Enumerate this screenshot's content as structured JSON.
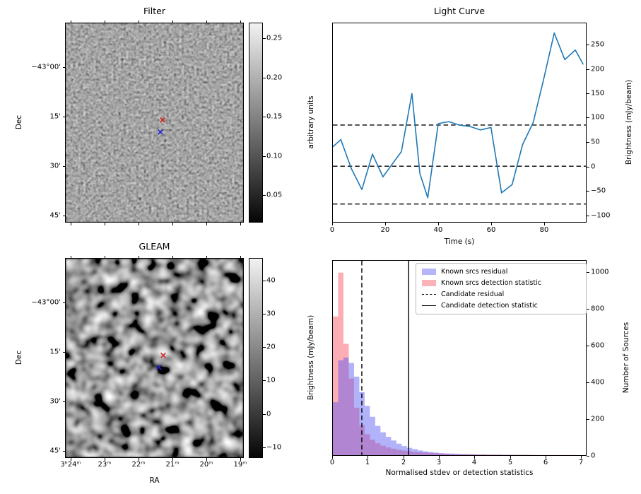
{
  "figure": {
    "background": "#ffffff",
    "line_color": "#1f77b4"
  },
  "panels": {
    "filter": {
      "title": "Filter",
      "ylabel": "Dec",
      "yticks": [
        "−43°00'",
        "15'",
        "30'",
        "45'"
      ],
      "colorbar": {
        "label": "arbitrary units",
        "ticks": [
          "0.25",
          "0.20",
          "0.15",
          "0.10",
          "0.05"
        ]
      },
      "markers": [
        {
          "name": "candidate-position",
          "glyph": "×",
          "color": "#d62222"
        },
        {
          "name": "known-source-position",
          "glyph": "×",
          "color": "#2222dd"
        }
      ]
    },
    "light_curve": {
      "title": "Light Curve",
      "xlabel": "Time (s)",
      "ylabel": "Brightness (mJy/beam)",
      "xticks": [
        "0",
        "20",
        "40",
        "60",
        "80"
      ],
      "yticks": [
        "250",
        "200",
        "150",
        "100",
        "50",
        "0",
        "−50",
        "−100"
      ]
    },
    "gleam": {
      "title": "GLEAM",
      "xlabel": "RA",
      "ylabel": "Dec",
      "xticks": [
        "3ʰ24ᵐ",
        "23ᵐ",
        "22ᵐ",
        "21ᵐ",
        "20ᵐ",
        "19ᵐ"
      ],
      "yticks": [
        "−43°00'",
        "15'",
        "30'",
        "45'"
      ],
      "colorbar": {
        "label": "Brightness (mJy/beam)",
        "ticks": [
          "40",
          "30",
          "20",
          "10",
          "0",
          "−10"
        ]
      },
      "markers": [
        {
          "name": "candidate-position",
          "glyph": "×",
          "color": "#d62222"
        },
        {
          "name": "known-source-position",
          "glyph": "×",
          "color": "#2222dd"
        }
      ]
    },
    "histogram": {
      "xlabel": "Normalised stdev or detection statistics",
      "ylabel": "Number of Sources",
      "xticks": [
        "0",
        "1",
        "2",
        "3",
        "4",
        "5",
        "6",
        "7"
      ],
      "yticks": [
        "0",
        "200",
        "400",
        "600",
        "800",
        "1000"
      ],
      "legend": [
        {
          "label": "Known srcs residual",
          "swatch": "patch",
          "color": "#b5b5f8"
        },
        {
          "label": "Known srcs detection statistic",
          "swatch": "patch",
          "color": "#fbb3b9"
        },
        {
          "label": "Candidate residual",
          "swatch": "dashed-line",
          "color": "#000000"
        },
        {
          "label": "Candidate detection statistic",
          "swatch": "solid-line",
          "color": "#000000"
        }
      ]
    }
  },
  "chart_data": [
    {
      "type": "line",
      "title": "Light Curve",
      "xlabel": "Time (s)",
      "ylabel": "Brightness (mJy/beam)",
      "x": [
        0,
        3,
        7,
        11,
        15,
        19,
        23,
        26,
        30,
        33,
        36,
        40,
        44,
        48,
        52,
        56,
        60,
        64,
        68,
        72,
        76,
        80,
        84,
        88,
        92,
        95
      ],
      "y": [
        40,
        55,
        -5,
        -48,
        25,
        -22,
        8,
        30,
        150,
        -15,
        -65,
        88,
        92,
        85,
        82,
        75,
        80,
        -55,
        -38,
        45,
        90,
        180,
        275,
        220,
        240,
        210
      ],
      "xlim": [
        0,
        96
      ],
      "ylim": [
        -115,
        295
      ],
      "line_color": "#1f77b4",
      "hlines": [
        {
          "y": 85,
          "style": "dashed"
        },
        {
          "y": 0,
          "style": "dashed"
        },
        {
          "y": -78,
          "style": "dashed"
        }
      ]
    },
    {
      "type": "histogram",
      "xlabel": "Normalised stdev or detection statistics",
      "ylabel": "Number of Sources",
      "bin_start": 0,
      "bin_width": 0.15,
      "xlim": [
        0,
        7.17
      ],
      "ylim": [
        0,
        1065
      ],
      "series": [
        {
          "name": "Known srcs residual",
          "fill": "rgba(85,85,245,0.45)",
          "counts": [
            290,
            520,
            535,
            505,
            430,
            345,
            270,
            210,
            160,
            125,
            100,
            80,
            63,
            50,
            40,
            33,
            26,
            21,
            17,
            14,
            11,
            9,
            8,
            6,
            5,
            5,
            4,
            3,
            3,
            2,
            2,
            2,
            1,
            1,
            1,
            1,
            1,
            0,
            0,
            0,
            0,
            0,
            0,
            0,
            0,
            0
          ]
        },
        {
          "name": "Known srcs detection statistic",
          "fill": "rgba(250,75,90,0.45)",
          "counts": [
            760,
            1000,
            610,
            420,
            260,
            165,
            115,
            85,
            65,
            52,
            42,
            35,
            29,
            25,
            21,
            18,
            16,
            14,
            12,
            11,
            9,
            8,
            7,
            7,
            6,
            5,
            5,
            4,
            4,
            3,
            3,
            3,
            2,
            2,
            2,
            2,
            2,
            2,
            1,
            1,
            1,
            1,
            1,
            1,
            1,
            1
          ]
        }
      ],
      "vlines": [
        {
          "x": 0.82,
          "style": "dashed",
          "label": "Candidate residual"
        },
        {
          "x": 2.15,
          "style": "solid",
          "label": "Candidate detection statistic"
        }
      ]
    }
  ]
}
